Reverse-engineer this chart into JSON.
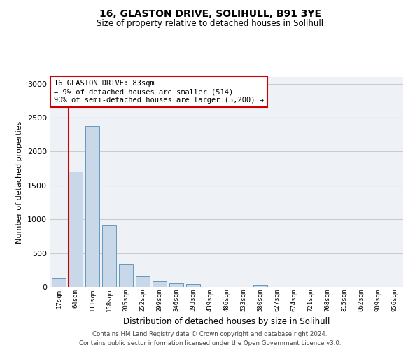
{
  "title1": "16, GLASTON DRIVE, SOLIHULL, B91 3YE",
  "title2": "Size of property relative to detached houses in Solihull",
  "xlabel": "Distribution of detached houses by size in Solihull",
  "ylabel": "Number of detached properties",
  "categories": [
    "17sqm",
    "64sqm",
    "111sqm",
    "158sqm",
    "205sqm",
    "252sqm",
    "299sqm",
    "346sqm",
    "393sqm",
    "439sqm",
    "486sqm",
    "533sqm",
    "580sqm",
    "627sqm",
    "674sqm",
    "721sqm",
    "768sqm",
    "815sqm",
    "862sqm",
    "909sqm",
    "956sqm"
  ],
  "values": [
    130,
    1700,
    2380,
    910,
    340,
    150,
    85,
    55,
    40,
    0,
    0,
    0,
    30,
    0,
    0,
    0,
    0,
    0,
    0,
    0,
    0
  ],
  "bar_color": "#c8d8e8",
  "bar_edge_color": "#6699bb",
  "vline_color": "#cc0000",
  "annotation_text": "16 GLASTON DRIVE: 83sqm\n← 9% of detached houses are smaller (514)\n90% of semi-detached houses are larger (5,200) →",
  "annotation_box_color": "#ffffff",
  "annotation_box_edge_color": "#cc0000",
  "ylim": [
    0,
    3100
  ],
  "yticks": [
    0,
    500,
    1000,
    1500,
    2000,
    2500,
    3000
  ],
  "grid_color": "#cccccc",
  "background_color": "#eef2f7",
  "footer1": "Contains HM Land Registry data © Crown copyright and database right 2024.",
  "footer2": "Contains public sector information licensed under the Open Government Licence v3.0."
}
